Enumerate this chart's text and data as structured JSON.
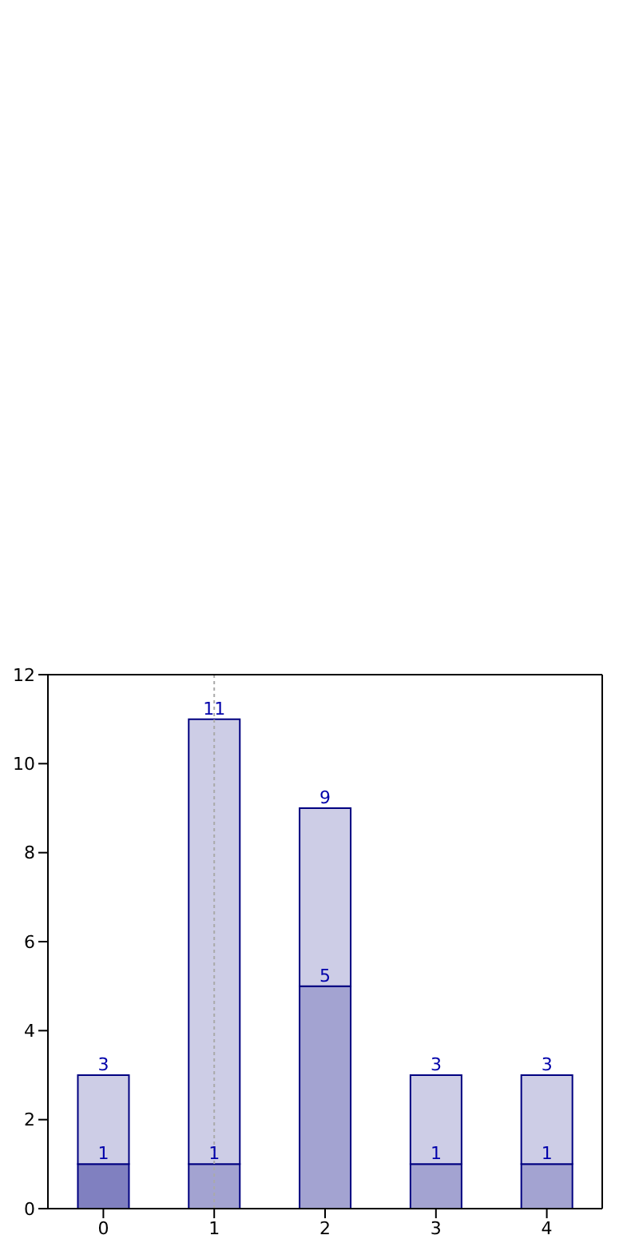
{
  "chart_data": {
    "type": "bar",
    "stacked": true,
    "categories": [
      "0",
      "1",
      "2",
      "3",
      "4"
    ],
    "series": [
      {
        "colors": [
          "#8080c0",
          "#a3a3d1",
          "#a3a3d1",
          "#a3a3d1",
          "#a3a3d1"
        ],
        "values": [
          1,
          1,
          5,
          1,
          1
        ],
        "value_labels": [
          "1",
          "1",
          "5",
          "1",
          "1"
        ]
      },
      {
        "color": "#cdcde6",
        "values": [
          2,
          10,
          4,
          2,
          2
        ]
      }
    ],
    "totals": [
      "3",
      "11",
      "9",
      "3",
      "3"
    ],
    "ylim": [
      0,
      12
    ],
    "yticks": [
      0,
      2,
      4,
      6,
      8,
      10,
      12
    ],
    "grid": false,
    "legend": false,
    "ref_lines": [
      {
        "axis": "x",
        "value": "1",
        "color": "#aaaaaa",
        "line_style": "dotted"
      }
    ]
  }
}
